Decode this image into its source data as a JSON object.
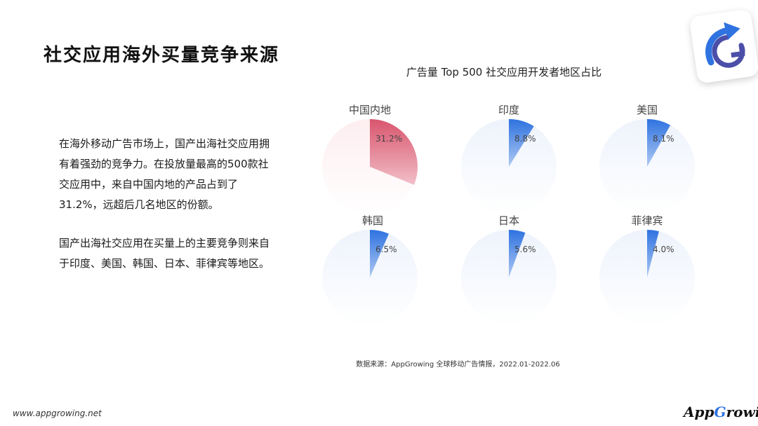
{
  "page": {
    "title": "社交应用海外买量竞争来源",
    "para1": "在海外移动广告市场上，国产出海社交应用拥有着强劲的竞争力。在投放量最高的500款社交应用中，来自中国内地的产品占到了31.2%，远超后几名地区的份额。",
    "para2": "国产出海社交应用在买量上的主要竞争则来自于印度、美国、韩国、日本、菲律宾等地区。",
    "source": "数据来源：AppGrowing 全球移动广告情报，2022.01-2022.06",
    "site_url": "www.appgrowing.net",
    "brand_logo_text": "AppGrowing"
  },
  "chart_data": {
    "type": "pie",
    "title": "广告量 Top 500 社交应用开发者地区占比",
    "unit": "%",
    "items": [
      {
        "name": "中国内地",
        "value": 31.2,
        "label": "31.2%",
        "color": "#d9566e",
        "bg": "#fdeef0"
      },
      {
        "name": "印度",
        "value": 8.8,
        "label": "8.8%",
        "color": "#2f73e0",
        "bg": "#eef3fc"
      },
      {
        "name": "美国",
        "value": 8.1,
        "label": "8.1%",
        "color": "#2f73e0",
        "bg": "#eef3fc"
      },
      {
        "name": "韩国",
        "value": 6.5,
        "label": "6.5%",
        "color": "#2f73e0",
        "bg": "#eef3fc"
      },
      {
        "name": "日本",
        "value": 5.6,
        "label": "5.6%",
        "color": "#2f73e0",
        "bg": "#eef3fc"
      },
      {
        "name": "菲律宾",
        "value": 4.0,
        "label": "4.0%",
        "color": "#2f73e0",
        "bg": "#eef3fc"
      }
    ]
  }
}
